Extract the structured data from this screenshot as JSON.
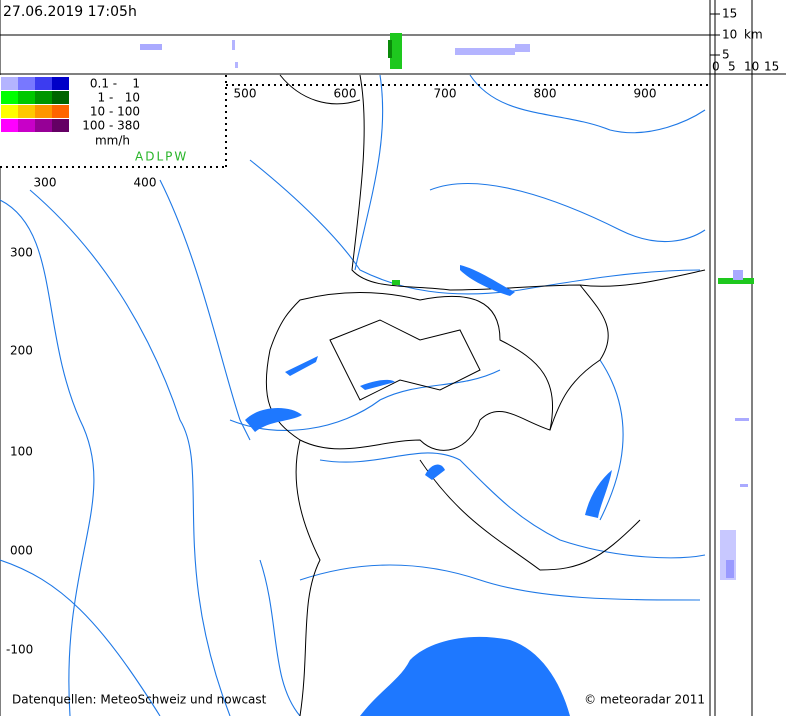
{
  "header": {
    "timestamp": "27.06.2019 17:05h"
  },
  "legend": {
    "rows": [
      "0.1 -    1",
      "1 -   10",
      "10 - 100",
      "100 - 380"
    ],
    "unit": "mm/h",
    "radars": "ADLPW"
  },
  "axes": {
    "top_x": [
      "500",
      "600",
      "700",
      "800",
      "900"
    ],
    "inset_x": [
      "300",
      "400"
    ],
    "y": [
      "300",
      "200",
      "100",
      "000",
      "-100"
    ]
  },
  "profile": {
    "height_ticks": [
      "15",
      "10",
      "5"
    ],
    "height_unit": "km",
    "width_ticks": [
      "0",
      "5",
      "10",
      "15"
    ]
  },
  "footer": {
    "sources": "Datenquellen: MeteoSchweiz und nowcast",
    "copyright": "© meteoradar 2011"
  }
}
